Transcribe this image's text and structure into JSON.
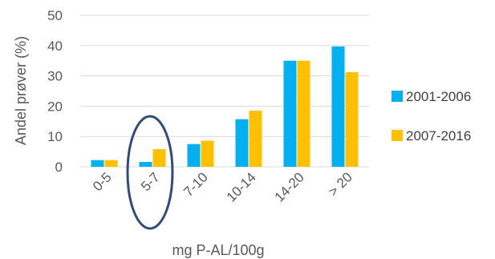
{
  "chart_data": {
    "type": "bar",
    "categories": [
      "0-5",
      "5-7",
      "7-10",
      "10-14",
      "14-20",
      "> 20"
    ],
    "series": [
      {
        "name": "2001-2006",
        "values": [
          2.2,
          1.6,
          7.5,
          15.7,
          35.0,
          39.7
        ],
        "color": "#00b0f0"
      },
      {
        "name": "2007-2016",
        "values": [
          2.2,
          5.8,
          8.6,
          18.5,
          35.0,
          31.2
        ],
        "color": "#ffc000"
      }
    ],
    "xlabel": "mg P-AL/100g",
    "ylabel": "Andel prøver (%)",
    "ylim": [
      0,
      50
    ],
    "yticks": [
      0,
      10,
      20,
      30,
      40,
      50
    ],
    "grid": true,
    "legend": "right",
    "highlight": {
      "category": "5-7",
      "shape": "ellipse",
      "color": "#2f4b7c"
    }
  }
}
